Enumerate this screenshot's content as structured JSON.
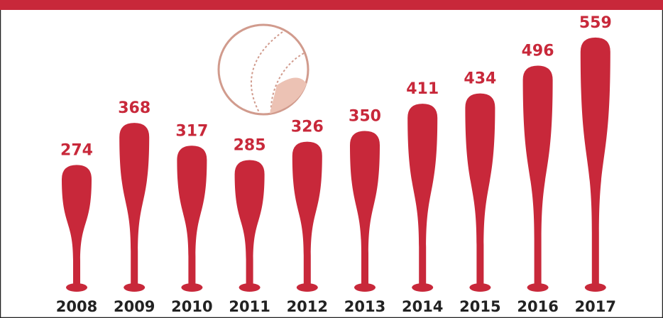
{
  "chart_data": {
    "type": "bat",
    "categories": [
      "2008",
      "2009",
      "2010",
      "2011",
      "2012",
      "2013",
      "2014",
      "2015",
      "2016",
      "2017"
    ],
    "values": [
      274,
      368,
      317,
      285,
      326,
      350,
      411,
      434,
      496,
      559
    ],
    "color": "#c8283a"
  }
}
